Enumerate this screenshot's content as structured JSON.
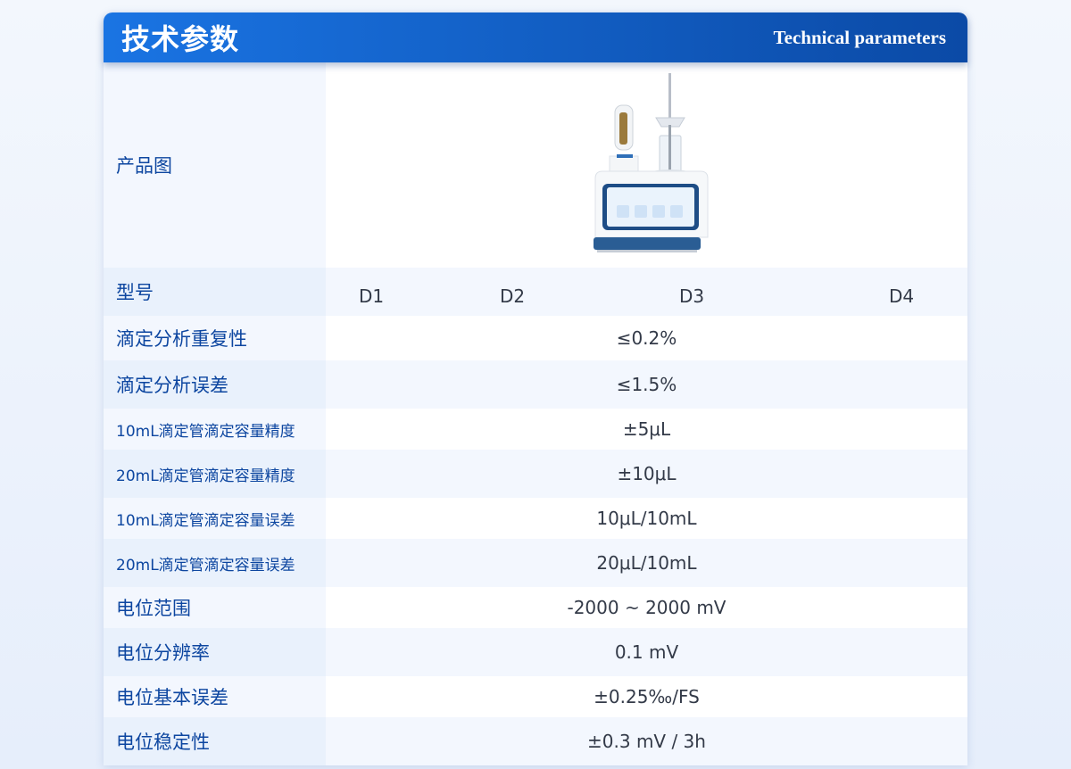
{
  "header": {
    "title": "技术参数",
    "subtitle": "Technical parameters"
  },
  "product_image": {
    "label": "产品图",
    "icon": "titrator-device-image"
  },
  "model": {
    "label": "型号",
    "values": [
      "D1",
      "D2",
      "D3",
      "D4"
    ]
  },
  "rows": [
    {
      "label": "滴定分析重复性",
      "value": "≤0.2%"
    },
    {
      "label": "滴定分析误差",
      "value": "≤1.5%"
    },
    {
      "label": "10mL滴定管滴定容量精度",
      "value": "±5μL"
    },
    {
      "label": "20mL滴定管滴定容量精度",
      "value": "±10μL"
    },
    {
      "label": "10mL滴定管滴定容量误差",
      "value": "10μL/10mL"
    },
    {
      "label": "20mL滴定管滴定容量误差",
      "value": "20μL/10mL"
    },
    {
      "label": "电位范围",
      "value": "-2000 ~ 2000 mV"
    },
    {
      "label": "电位分辨率",
      "value": "0.1 mV"
    },
    {
      "label": "电位基本误差",
      "value": "±0.25‰/FS"
    },
    {
      "label": "电位稳定性",
      "value": "±0.3 mV / 3h"
    }
  ]
}
